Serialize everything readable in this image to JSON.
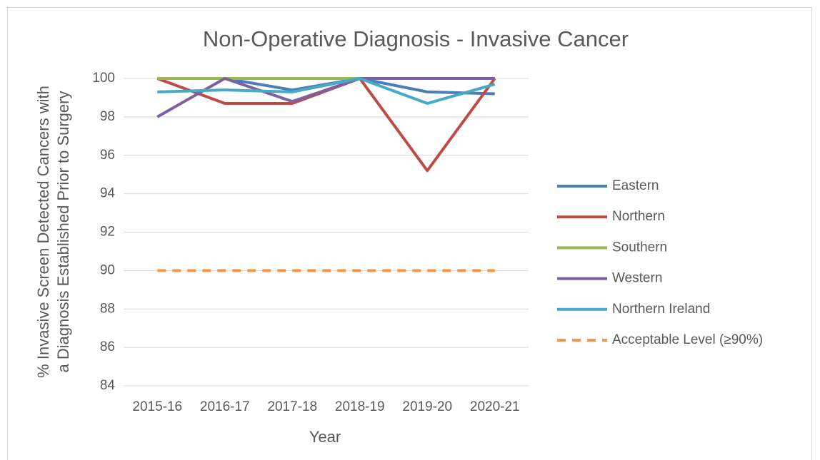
{
  "chart_data": {
    "type": "line",
    "title": "Non-Operative Diagnosis - Invasive Cancer",
    "xlabel": "Year",
    "ylabel": [
      "% Invasive Screen Detected Cancers with",
      "a Diagnosis Established Prior to Surgery"
    ],
    "categories": [
      "2015-16",
      "2016-17",
      "2017-18",
      "2018-19",
      "2019-20",
      "2020-21"
    ],
    "series": [
      {
        "name": "Eastern",
        "color": "#4a7ebb",
        "values": [
          100,
          100,
          99.4,
          100,
          99.3,
          99.2
        ]
      },
      {
        "name": "Northern",
        "color": "#be4b48",
        "values": [
          100,
          98.7,
          98.7,
          100,
          95.2,
          100
        ]
      },
      {
        "name": "Southern",
        "color": "#98b954",
        "values": [
          100,
          100,
          100,
          100,
          100,
          100
        ]
      },
      {
        "name": "Western",
        "color": "#7d60a0",
        "values": [
          98,
          100,
          98.8,
          100,
          100,
          100
        ]
      },
      {
        "name": "Northern Ireland",
        "color": "#46aac5",
        "values": [
          99.3,
          99.4,
          99.3,
          100,
          98.7,
          99.7
        ]
      },
      {
        "name": "Acceptable Level (≥90%)",
        "color": "#f79646",
        "dashed": true,
        "values": [
          90,
          90,
          90,
          90,
          90,
          90
        ]
      }
    ],
    "ylim": [
      84,
      100
    ],
    "yticks": [
      84,
      86,
      88,
      90,
      92,
      94,
      96,
      98,
      100
    ],
    "grid": true,
    "legend": "right"
  }
}
